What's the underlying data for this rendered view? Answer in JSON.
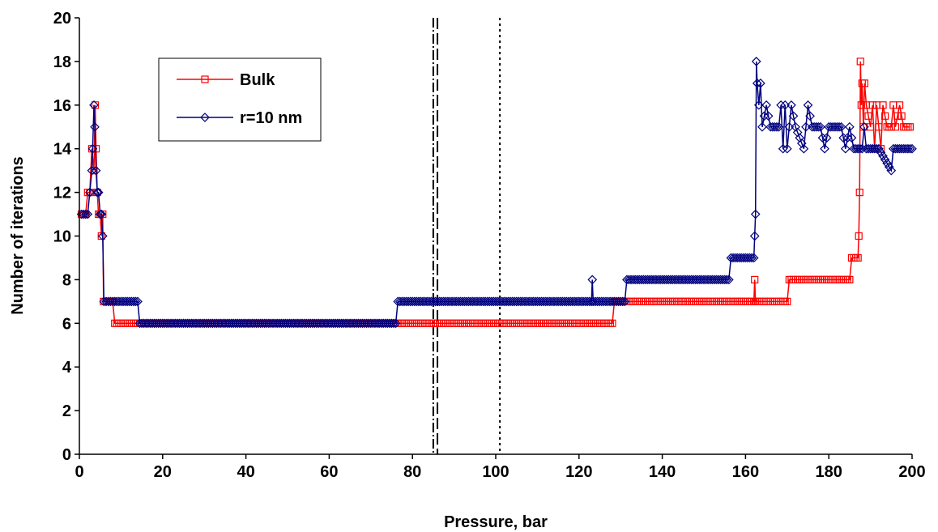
{
  "chart_data": {
    "type": "line",
    "title": "",
    "xlabel": "Pressure, bar",
    "ylabel": "Number of iterations",
    "xlim": [
      0,
      200
    ],
    "ylim": [
      0,
      20
    ],
    "x_ticks": [
      0,
      20,
      40,
      60,
      80,
      100,
      120,
      140,
      160,
      180,
      200
    ],
    "y_ticks": [
      0,
      2,
      4,
      6,
      8,
      10,
      12,
      14,
      16,
      18,
      20
    ],
    "grid": false,
    "legend_position": "top-left",
    "reference_lines": [
      {
        "x": 85,
        "style": "dash-dot"
      },
      {
        "x": 86,
        "style": "dashed"
      },
      {
        "x": 101,
        "style": "dotted"
      }
    ],
    "series": [
      {
        "name": "Bulk",
        "color": "#ff0000",
        "marker": "square",
        "points": [
          [
            0.5,
            11
          ],
          [
            1,
            11
          ],
          [
            1.5,
            11
          ],
          [
            2,
            12
          ],
          [
            2.5,
            12
          ],
          [
            3,
            14
          ],
          [
            3.5,
            13
          ],
          [
            3.8,
            16
          ],
          [
            4,
            14
          ],
          [
            4.3,
            12
          ],
          [
            4.6,
            11
          ],
          [
            5,
            11
          ],
          [
            5.3,
            10
          ],
          [
            5.6,
            11
          ],
          [
            5.8,
            7
          ],
          [
            6.5,
            7
          ],
          [
            7,
            7
          ],
          [
            7.5,
            7
          ],
          [
            8,
            7
          ],
          [
            8.5,
            6
          ],
          [
            128,
            6
          ],
          [
            128.5,
            7
          ],
          [
            162,
            7
          ],
          [
            162.2,
            8
          ],
          [
            162.4,
            7
          ],
          [
            170,
            7
          ],
          [
            170.5,
            8
          ],
          [
            185,
            8
          ],
          [
            185.5,
            9
          ],
          [
            187,
            9
          ],
          [
            187.2,
            10
          ],
          [
            187.4,
            12
          ],
          [
            187.6,
            18
          ],
          [
            187.8,
            16
          ],
          [
            188,
            17
          ],
          [
            188.3,
            15
          ],
          [
            188.6,
            17
          ],
          [
            189,
            16
          ],
          [
            190,
            15
          ],
          [
            190.5,
            16
          ],
          [
            191,
            14
          ],
          [
            191.5,
            16
          ],
          [
            192,
            15
          ],
          [
            192.5,
            14
          ],
          [
            193,
            16
          ],
          [
            194,
            15
          ],
          [
            195,
            15
          ],
          [
            195.5,
            16
          ],
          [
            196,
            15
          ],
          [
            197,
            16
          ],
          [
            198,
            15
          ],
          [
            199,
            15
          ],
          [
            199.5,
            15
          ]
        ]
      },
      {
        "name": "r=10 nm",
        "color": "#00007f",
        "marker": "diamond",
        "points": [
          [
            0.5,
            11
          ],
          [
            1,
            11
          ],
          [
            1.5,
            11
          ],
          [
            2,
            11
          ],
          [
            2.5,
            12
          ],
          [
            3,
            13
          ],
          [
            3.2,
            14
          ],
          [
            3.5,
            16
          ],
          [
            3.7,
            15
          ],
          [
            4,
            13
          ],
          [
            4.3,
            12
          ],
          [
            4.6,
            12
          ],
          [
            5,
            11
          ],
          [
            5.3,
            11
          ],
          [
            5.6,
            10
          ],
          [
            5.9,
            7
          ],
          [
            8,
            7
          ],
          [
            10,
            7
          ],
          [
            12,
            7
          ],
          [
            14,
            7
          ],
          [
            14.5,
            6
          ],
          [
            76,
            6
          ],
          [
            76.5,
            7
          ],
          [
            123,
            7
          ],
          [
            123.2,
            8
          ],
          [
            123.4,
            7
          ],
          [
            131,
            7
          ],
          [
            131.5,
            8
          ],
          [
            156,
            8
          ],
          [
            156.5,
            9
          ],
          [
            162,
            9
          ],
          [
            162.2,
            10
          ],
          [
            162.4,
            11
          ],
          [
            162.6,
            18
          ],
          [
            162.8,
            17
          ],
          [
            163.2,
            16
          ],
          [
            163.6,
            17
          ],
          [
            164,
            15
          ],
          [
            165,
            16
          ],
          [
            166,
            15
          ],
          [
            168,
            15
          ],
          [
            168.5,
            16
          ],
          [
            169,
            14
          ],
          [
            169.5,
            16
          ],
          [
            170,
            14
          ],
          [
            171,
            16
          ],
          [
            172,
            15
          ],
          [
            174,
            14
          ],
          [
            175,
            16
          ],
          [
            176,
            15
          ],
          [
            178,
            15
          ],
          [
            179,
            14
          ],
          [
            180,
            15
          ],
          [
            183,
            15
          ],
          [
            184,
            14
          ],
          [
            185,
            15
          ],
          [
            186,
            14
          ],
          [
            188,
            14
          ],
          [
            188.5,
            15
          ],
          [
            189,
            14
          ],
          [
            192,
            14
          ],
          [
            195,
            13
          ],
          [
            195.5,
            14
          ],
          [
            196,
            14
          ],
          [
            200,
            14
          ]
        ]
      }
    ]
  }
}
